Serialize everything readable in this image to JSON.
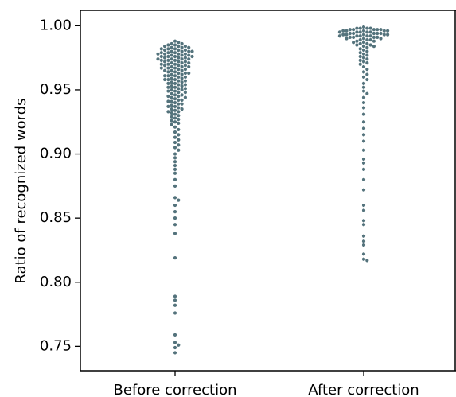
{
  "chart_data": {
    "type": "scatter",
    "subtype": "swarm",
    "title": "",
    "xlabel": "",
    "ylabel": "Ratio of recognized words",
    "categories": [
      "Before correction",
      "After correction"
    ],
    "ylim": [
      0.731,
      1.012
    ],
    "yticks": [
      "0.75",
      "0.80",
      "0.85",
      "0.90",
      "0.95",
      "1.00"
    ],
    "grid": false,
    "legend": "none",
    "colors": {
      "point": "#54737c",
      "point_dark": "#0e4a5a",
      "axis": "#000000"
    },
    "series": [
      {
        "category": "Before correction",
        "values": [
          0.988,
          0.987,
          0.986,
          0.986,
          0.985,
          0.985,
          0.984,
          0.984,
          0.984,
          0.983,
          0.983,
          0.983,
          0.982,
          0.982,
          0.982,
          0.981,
          0.981,
          0.981,
          0.98,
          0.98,
          0.98,
          0.98,
          0.979,
          0.979,
          0.979,
          0.978,
          0.978,
          0.978,
          0.978,
          0.977,
          0.977,
          0.977,
          0.976,
          0.976,
          0.976,
          0.976,
          0.975,
          0.975,
          0.975,
          0.974,
          0.974,
          0.974,
          0.974,
          0.973,
          0.973,
          0.973,
          0.972,
          0.972,
          0.972,
          0.971,
          0.971,
          0.971,
          0.97,
          0.97,
          0.97,
          0.969,
          0.969,
          0.969,
          0.968,
          0.968,
          0.968,
          0.967,
          0.967,
          0.967,
          0.966,
          0.966,
          0.965,
          0.965,
          0.965,
          0.964,
          0.964,
          0.963,
          0.963,
          0.963,
          0.962,
          0.962,
          0.961,
          0.961,
          0.961,
          0.96,
          0.96,
          0.959,
          0.959,
          0.958,
          0.958,
          0.958,
          0.957,
          0.957,
          0.956,
          0.956,
          0.955,
          0.955,
          0.954,
          0.954,
          0.953,
          0.953,
          0.952,
          0.952,
          0.951,
          0.951,
          0.95,
          0.95,
          0.949,
          0.949,
          0.948,
          0.948,
          0.947,
          0.946,
          0.946,
          0.945,
          0.945,
          0.944,
          0.944,
          0.943,
          0.942,
          0.942,
          0.941,
          0.941,
          0.94,
          0.939,
          0.939,
          0.938,
          0.937,
          0.937,
          0.936,
          0.935,
          0.935,
          0.934,
          0.933,
          0.933,
          0.932,
          0.931,
          0.93,
          0.929,
          0.928,
          0.927,
          0.926,
          0.925,
          0.924,
          0.923,
          0.921,
          0.919,
          0.917,
          0.915,
          0.913,
          0.911,
          0.909,
          0.907,
          0.905,
          0.903,
          0.9,
          0.897,
          0.894,
          0.891,
          0.888,
          0.885,
          0.88,
          0.875,
          0.866,
          0.864,
          0.86,
          0.855,
          0.85,
          0.845,
          0.838,
          0.819,
          0.789,
          0.786,
          0.782,
          0.776,
          0.759,
          0.753,
          0.751,
          0.749,
          0.745
        ]
      },
      {
        "category": "After correction",
        "values": [
          0.999,
          0.998,
          0.998,
          0.998,
          0.998,
          0.997,
          0.997,
          0.997,
          0.997,
          0.997,
          0.996,
          0.996,
          0.996,
          0.996,
          0.996,
          0.995,
          0.995,
          0.995,
          0.995,
          0.995,
          0.994,
          0.994,
          0.994,
          0.994,
          0.994,
          0.993,
          0.993,
          0.993,
          0.993,
          0.993,
          0.992,
          0.992,
          0.992,
          0.992,
          0.992,
          0.991,
          0.991,
          0.991,
          0.991,
          0.99,
          0.99,
          0.99,
          0.989,
          0.989,
          0.989,
          0.988,
          0.988,
          0.987,
          0.987,
          0.986,
          0.986,
          0.985,
          0.985,
          0.984,
          0.984,
          0.983,
          0.982,
          0.981,
          0.98,
          0.979,
          0.978,
          0.977,
          0.976,
          0.975,
          0.974,
          0.973,
          0.972,
          0.971,
          0.97,
          0.968,
          0.966,
          0.964,
          0.962,
          0.96,
          0.958,
          0.955,
          0.952,
          0.949,
          0.947,
          0.944,
          0.94,
          0.936,
          0.931,
          0.925,
          0.92,
          0.915,
          0.91,
          0.903,
          0.896,
          0.893,
          0.888,
          0.88,
          0.872,
          0.86,
          0.856,
          0.848,
          0.845,
          0.836,
          0.832,
          0.829,
          0.822,
          0.818,
          0.817
        ]
      }
    ]
  }
}
